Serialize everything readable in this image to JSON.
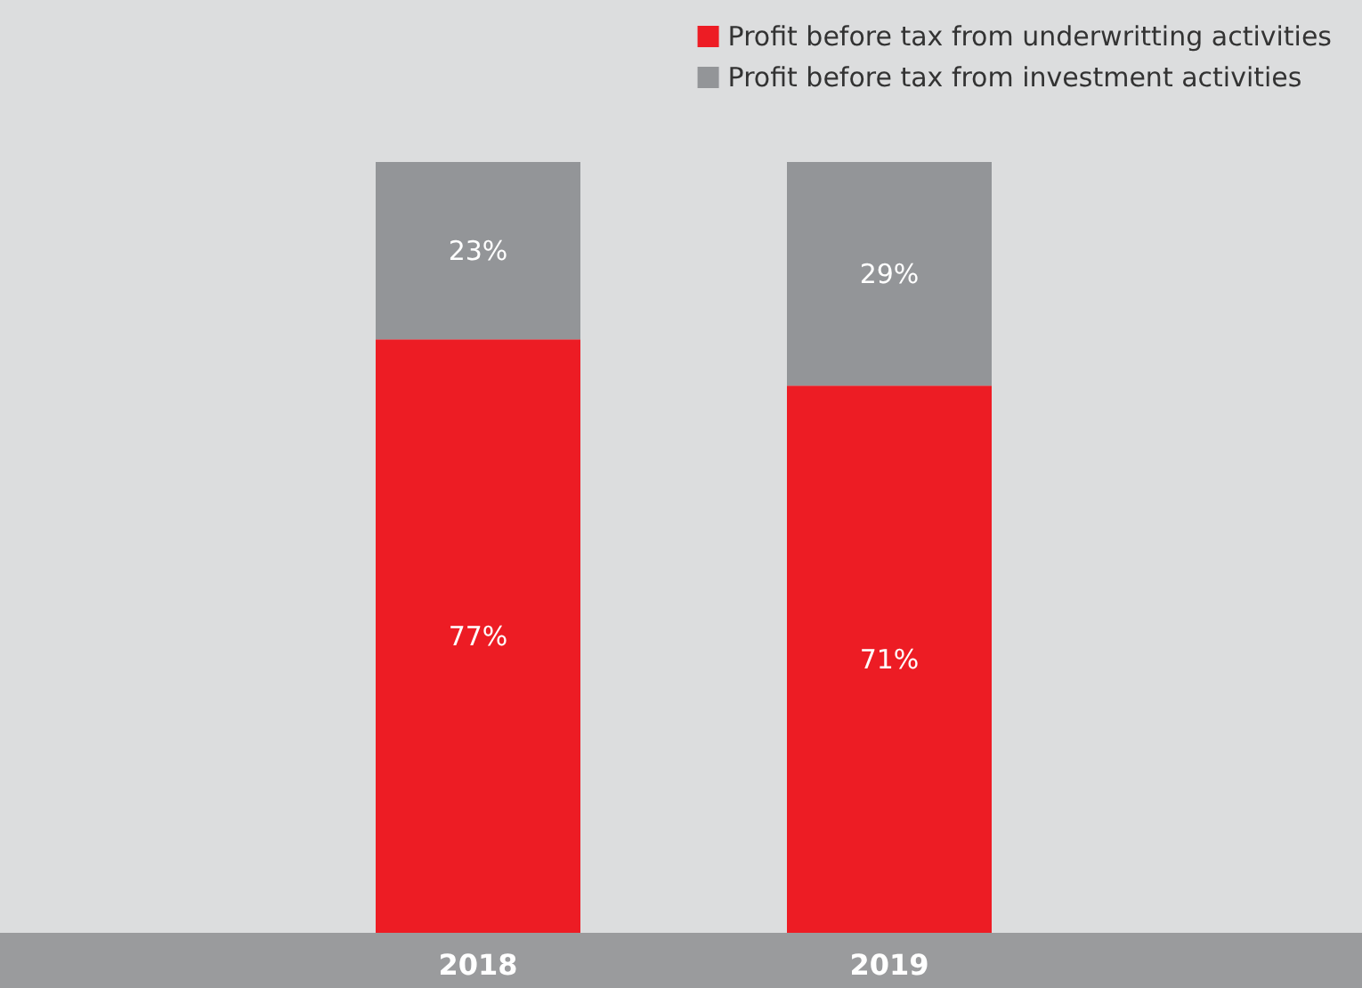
{
  "chart_data": {
    "type": "bar",
    "stacked": true,
    "categories": [
      "2018",
      "2019"
    ],
    "ylim": [
      0,
      100
    ],
    "legend": "top right",
    "series": [
      {
        "name": "Profit before tax from underwritting activities",
        "color": "#ed1c24",
        "values": [
          77,
          71
        ],
        "value_labels": [
          "77%",
          "71%"
        ]
      },
      {
        "name": "Profit before tax from investment activities",
        "color": "#939598",
        "values": [
          23,
          29
        ],
        "value_labels": [
          "23%",
          "29%"
        ]
      }
    ]
  }
}
